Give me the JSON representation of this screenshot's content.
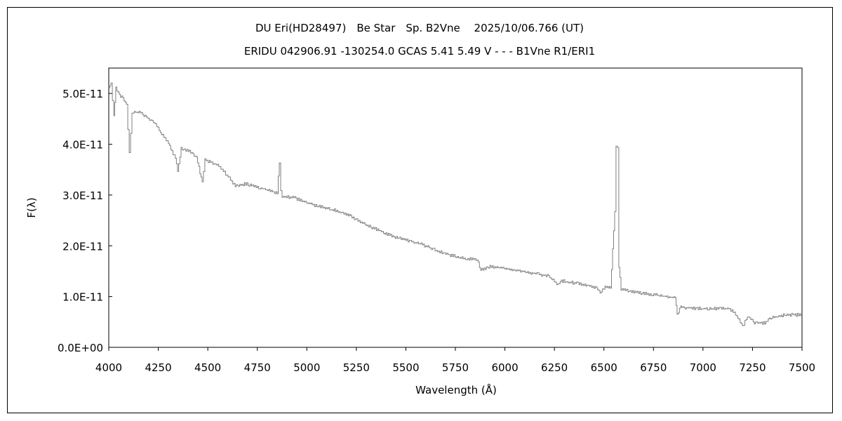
{
  "chart_data": {
    "type": "line",
    "title": "DU Eri(HD28497)　Be Star　Sp. B2Vne　 2025/10/06.766 (UT)",
    "subtitle": "ERIDU 042906.91 -130254.0 GCAS 5.41 5.49 V - - - B1Vne R1/ERI1",
    "xlabel": "Wavelength (Å)",
    "ylabel": "F(λ)",
    "xlim": [
      4000,
      7500
    ],
    "ylim": [
      0,
      5.5e-11
    ],
    "xticks": [
      4000,
      4250,
      4500,
      4750,
      5000,
      5250,
      5500,
      5750,
      6000,
      6250,
      6500,
      6750,
      7000,
      7250,
      7500
    ],
    "xtick_labels": [
      "4000",
      "4250",
      "4500",
      "4750",
      "5000",
      "5250",
      "5500",
      "5750",
      "6000",
      "6250",
      "6500",
      "6750",
      "7000",
      "7250",
      "7500"
    ],
    "yticks": [
      0,
      1e-11,
      2e-11,
      3e-11,
      4e-11,
      5e-11
    ],
    "ytick_labels": [
      "0.0E+00",
      "1.0E-11",
      "2.0E-11",
      "3.0E-11",
      "4.0E-11",
      "5.0E-11"
    ],
    "grid": false,
    "line_color": "#808080",
    "series": [
      {
        "x": [
          4000,
          4011,
          4025,
          4035,
          4053,
          4071,
          4089,
          4103,
          4117,
          4159,
          4195,
          4230,
          4266,
          4301,
          4336,
          4347,
          4365,
          4407,
          4443,
          4471,
          4485,
          4549,
          4584,
          4638,
          4691,
          4762,
          4850,
          4861,
          4868,
          4875,
          4939,
          5045,
          5151,
          5222,
          5293,
          5399,
          5470,
          5576,
          5683,
          5789,
          5860,
          5877,
          5930,
          6001,
          6108,
          6214,
          6267,
          6285,
          6391,
          6462,
          6480,
          6505,
          6533,
          6554,
          6561,
          6568,
          6575,
          6586,
          6639,
          6745,
          6859,
          6869,
          6887,
          6993,
          7135,
          7170,
          7199,
          7224,
          7259,
          7312,
          7347,
          7418,
          7500
        ],
        "y": [
          5.11e-11,
          5.18e-11,
          4.56e-11,
          5.11e-11,
          4.97e-11,
          4.9e-11,
          4.77e-11,
          3.83e-11,
          4.63e-11,
          4.63e-11,
          4.52e-11,
          4.42e-11,
          4.21e-11,
          4.01e-11,
          3.73e-11,
          3.45e-11,
          3.91e-11,
          3.87e-11,
          3.73e-11,
          3.25e-11,
          3.69e-11,
          3.59e-11,
          3.45e-11,
          3.18e-11,
          3.22e-11,
          3.14e-11,
          3.04e-11,
          3.66e-11,
          3.11e-11,
          2.97e-11,
          2.94e-11,
          2.79e-11,
          2.69e-11,
          2.58e-11,
          2.42e-11,
          2.24e-11,
          2.14e-11,
          2.03e-11,
          1.86e-11,
          1.75e-11,
          1.73e-11,
          1.52e-11,
          1.59e-11,
          1.56e-11,
          1.48e-11,
          1.41e-11,
          1.24e-11,
          1.31e-11,
          1.24e-11,
          1.17e-11,
          1.06e-11,
          1.2e-11,
          1.17e-11,
          2.69e-11,
          3.98e-11,
          3.94e-11,
          1.59e-11,
          1.15e-11,
          1.1e-11,
          1.04e-11,
          9.7e-12,
          6.5e-12,
          7.9e-12,
          7.6e-12,
          7.6e-12,
          6.2e-12,
          4.1e-12,
          6.2e-12,
          4.8e-12,
          4.8e-12,
          5.9e-12,
          6.4e-12,
          6.4e-12
        ]
      }
    ]
  }
}
